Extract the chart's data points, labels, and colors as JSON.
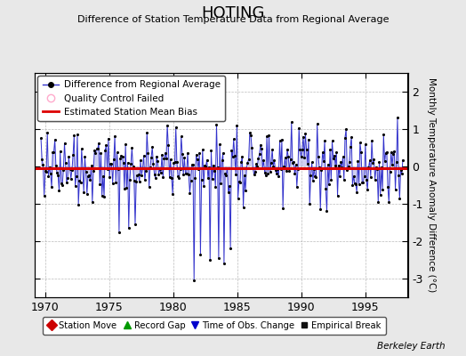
{
  "title": "HOTING",
  "subtitle": "Difference of Station Temperature Data from Regional Average",
  "ylabel": "Monthly Temperature Anomaly Difference (°C)",
  "xlabel_ticks": [
    1970,
    1975,
    1980,
    1985,
    1990,
    1995
  ],
  "ylim": [
    -3.5,
    2.5
  ],
  "xlim": [
    1969.2,
    1998.3
  ],
  "bias_line": -0.05,
  "background_color": "#e8e8e8",
  "plot_bg_color": "#ffffff",
  "line_color": "#3333cc",
  "line_fill_color": "#8888dd",
  "dot_color": "#000000",
  "bias_color": "#dd0000",
  "watermark": "Berkeley Earth",
  "legend1_entries": [
    {
      "label": "Difference from Regional Average"
    },
    {
      "label": "Quality Control Failed"
    },
    {
      "label": "Estimated Station Mean Bias"
    }
  ],
  "legend2_entries": [
    {
      "label": "Station Move",
      "color": "#cc0000",
      "marker": "D"
    },
    {
      "label": "Record Gap",
      "color": "#009900",
      "marker": "^"
    },
    {
      "label": "Time of Obs. Change",
      "color": "#0000cc",
      "marker": "v"
    },
    {
      "label": "Empirical Break",
      "color": "#111111",
      "marker": "s"
    }
  ]
}
